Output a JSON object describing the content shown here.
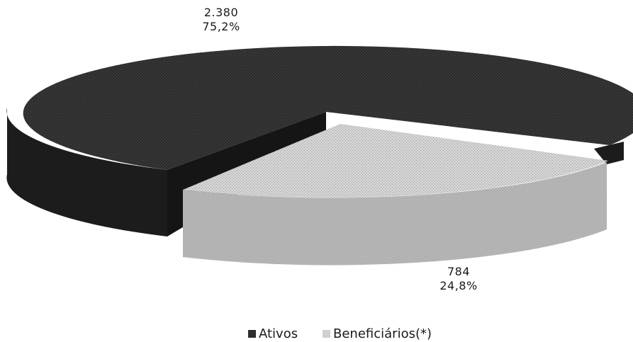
{
  "chart_data": {
    "type": "pie",
    "title": "",
    "slices": [
      {
        "label": "Ativos",
        "value": 2380,
        "value_text": "2.380",
        "percent_text": "75,2%",
        "color": "#2e2e2e"
      },
      {
        "label": "Beneficiários(*)",
        "value": 784,
        "value_text": "784",
        "percent_text": "24,8%",
        "color": "#cfcfcf"
      }
    ],
    "legend_position": "bottom",
    "style": "3d-exploded"
  },
  "colors": {
    "dark_top": "#2e2e2e",
    "dark_side": "#1c1c1c",
    "light_top": "#d4d4d4",
    "light_side": "#b6b6b6"
  }
}
